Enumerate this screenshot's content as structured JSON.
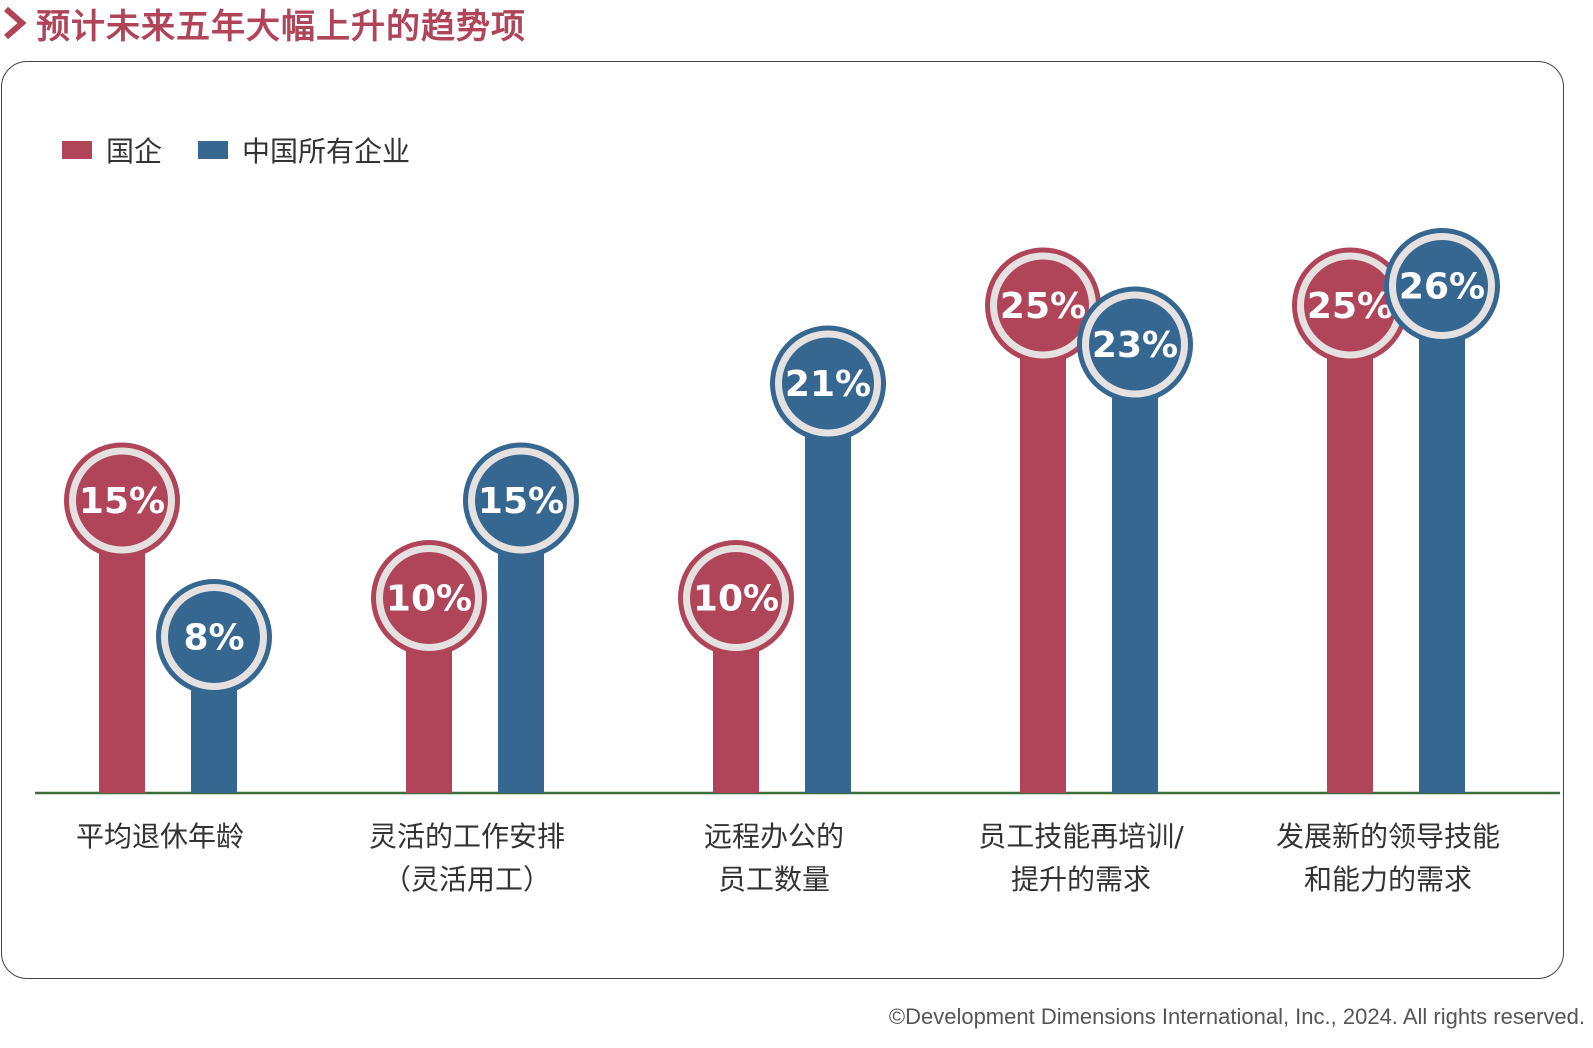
{
  "header": {
    "title": "预计未来五年大幅上升的趋势项"
  },
  "colors": {
    "soe": "#b04559",
    "all": "#356790",
    "baseline": "#3c6e3c",
    "ring": "#e6e1e1",
    "title": "#b04559"
  },
  "chart_data": {
    "type": "bar",
    "title": "",
    "xlabel": "",
    "ylabel": "",
    "ylim": [
      0,
      30
    ],
    "grid": false,
    "legend_position": "top-left",
    "categories": [
      [
        "平均退休年龄"
      ],
      [
        "灵活的工作安排",
        "（灵活用工）"
      ],
      [
        "远程办公的",
        "员工数量"
      ],
      [
        "员工技能再培训/",
        "提升的需求"
      ],
      [
        "发展新的领导技能",
        "和能力的需求"
      ]
    ],
    "series": [
      {
        "name": "国企",
        "values": [
          15,
          10,
          10,
          25,
          25
        ],
        "labels": [
          "15%",
          "10%",
          "10%",
          "25%",
          "25%"
        ]
      },
      {
        "name": "中国所有企业",
        "values": [
          8,
          15,
          21,
          23,
          26
        ],
        "labels": [
          "8%",
          "15%",
          "21%",
          "23%",
          "26%"
        ]
      }
    ]
  },
  "footer": {
    "copyright": "©Development Dimensions International, Inc., 2024. All rights reserved."
  }
}
